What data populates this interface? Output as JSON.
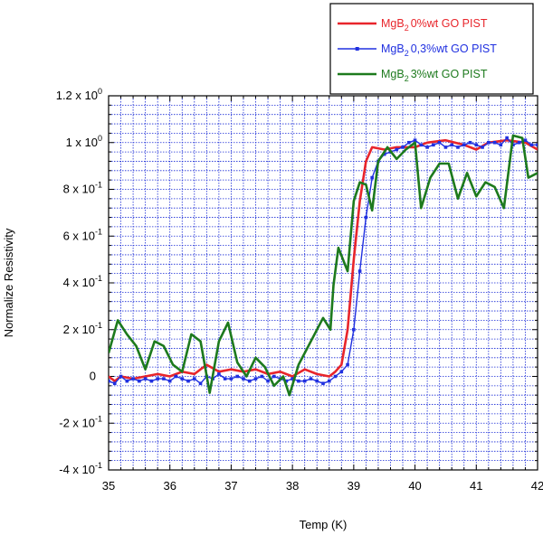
{
  "chart_data": {
    "type": "line",
    "xlabel": "Temp (K)",
    "ylabel": "Normalize Resistivity",
    "xlim": [
      35,
      42
    ],
    "ylim": [
      -0.4,
      1.2
    ],
    "x_ticks": [
      {
        "value": 35,
        "label": "35"
      },
      {
        "value": 36,
        "label": "36"
      },
      {
        "value": 37,
        "label": "37"
      },
      {
        "value": 38,
        "label": "38"
      },
      {
        "value": 39,
        "label": "39"
      },
      {
        "value": 40,
        "label": "40"
      },
      {
        "value": 41,
        "label": "41"
      },
      {
        "value": 42,
        "label": "42"
      }
    ],
    "y_ticks": [
      {
        "value": 1.2,
        "mantissa": "1.2",
        "exp": "0"
      },
      {
        "value": 1.0,
        "mantissa": "1",
        "exp": "0"
      },
      {
        "value": 0.8,
        "mantissa": "8",
        "exp": "-1"
      },
      {
        "value": 0.6,
        "mantissa": "6",
        "exp": "-1"
      },
      {
        "value": 0.4,
        "mantissa": "4",
        "exp": "-1"
      },
      {
        "value": 0.2,
        "mantissa": "2",
        "exp": "-1"
      },
      {
        "value": 0.0,
        "mantissa": "0",
        "exp": ""
      },
      {
        "value": -0.2,
        "mantissa": "-2",
        "exp": "-1"
      },
      {
        "value": -0.4,
        "mantissa": "-4",
        "exp": "-1"
      }
    ],
    "grid": true,
    "legend_position": "top-right",
    "series": [
      {
        "legend_main": "MgB",
        "legend_sub": "2",
        "legend_rest": "0%wt GO PIST",
        "color": "#e8252b",
        "marker": "none",
        "points": [
          [
            35.0,
            0.0
          ],
          [
            35.1,
            -0.02
          ],
          [
            35.2,
            0.0
          ],
          [
            35.4,
            -0.01
          ],
          [
            35.6,
            0.0
          ],
          [
            35.8,
            0.01
          ],
          [
            36.0,
            0.0
          ],
          [
            36.2,
            0.02
          ],
          [
            36.4,
            0.01
          ],
          [
            36.6,
            0.05
          ],
          [
            36.8,
            0.02
          ],
          [
            37.0,
            0.03
          ],
          [
            37.2,
            0.02
          ],
          [
            37.4,
            0.03
          ],
          [
            37.6,
            0.01
          ],
          [
            37.8,
            0.02
          ],
          [
            38.0,
            0.0
          ],
          [
            38.2,
            0.03
          ],
          [
            38.4,
            0.01
          ],
          [
            38.6,
            0.0
          ],
          [
            38.7,
            0.02
          ],
          [
            38.8,
            0.05
          ],
          [
            38.9,
            0.2
          ],
          [
            39.0,
            0.5
          ],
          [
            39.1,
            0.75
          ],
          [
            39.2,
            0.92
          ],
          [
            39.3,
            0.98
          ],
          [
            39.5,
            0.97
          ],
          [
            39.7,
            0.98
          ],
          [
            40.0,
            0.98
          ],
          [
            40.2,
            1.0
          ],
          [
            40.5,
            1.01
          ],
          [
            40.8,
            0.99
          ],
          [
            41.0,
            0.97
          ],
          [
            41.2,
            1.0
          ],
          [
            41.5,
            1.01
          ],
          [
            41.8,
            1.0
          ],
          [
            42.0,
            0.97
          ]
        ]
      },
      {
        "legend_main": "MgB",
        "legend_sub": "2",
        "legend_rest": "0,3%wt GO PIST",
        "color": "#2030e0",
        "marker": "square",
        "points": [
          [
            35.0,
            -0.02
          ],
          [
            35.1,
            -0.03
          ],
          [
            35.2,
            0.0
          ],
          [
            35.3,
            -0.02
          ],
          [
            35.4,
            -0.01
          ],
          [
            35.5,
            -0.02
          ],
          [
            35.6,
            -0.01
          ],
          [
            35.7,
            -0.02
          ],
          [
            35.8,
            -0.01
          ],
          [
            35.9,
            -0.01
          ],
          [
            36.0,
            -0.02
          ],
          [
            36.1,
            0.0
          ],
          [
            36.2,
            -0.01
          ],
          [
            36.3,
            -0.02
          ],
          [
            36.4,
            -0.01
          ],
          [
            36.5,
            -0.03
          ],
          [
            36.6,
            0.0
          ],
          [
            36.7,
            -0.01
          ],
          [
            36.8,
            0.01
          ],
          [
            36.9,
            -0.01
          ],
          [
            37.0,
            -0.01
          ],
          [
            37.1,
            0.0
          ],
          [
            37.2,
            -0.01
          ],
          [
            37.3,
            -0.02
          ],
          [
            37.4,
            -0.01
          ],
          [
            37.5,
            0.0
          ],
          [
            37.6,
            -0.02
          ],
          [
            37.7,
            0.0
          ],
          [
            37.8,
            -0.01
          ],
          [
            37.9,
            -0.02
          ],
          [
            38.0,
            -0.01
          ],
          [
            38.1,
            -0.02
          ],
          [
            38.2,
            -0.02
          ],
          [
            38.3,
            -0.01
          ],
          [
            38.4,
            -0.02
          ],
          [
            38.5,
            -0.03
          ],
          [
            38.6,
            -0.02
          ],
          [
            38.7,
            0.0
          ],
          [
            38.8,
            0.02
          ],
          [
            38.9,
            0.05
          ],
          [
            39.0,
            0.2
          ],
          [
            39.1,
            0.45
          ],
          [
            39.2,
            0.68
          ],
          [
            39.3,
            0.85
          ],
          [
            39.4,
            0.92
          ],
          [
            39.5,
            0.95
          ],
          [
            39.6,
            0.96
          ],
          [
            39.7,
            0.97
          ],
          [
            39.8,
            0.98
          ],
          [
            39.9,
            1.0
          ],
          [
            40.0,
            1.01
          ],
          [
            40.1,
            0.99
          ],
          [
            40.2,
            0.98
          ],
          [
            40.3,
            0.99
          ],
          [
            40.4,
            1.0
          ],
          [
            40.5,
            0.98
          ],
          [
            40.6,
            0.99
          ],
          [
            40.7,
            0.98
          ],
          [
            40.8,
            0.99
          ],
          [
            40.9,
            1.0
          ],
          [
            41.0,
            0.99
          ],
          [
            41.1,
            0.98
          ],
          [
            41.2,
            1.0
          ],
          [
            41.3,
            1.0
          ],
          [
            41.4,
            0.99
          ],
          [
            41.5,
            1.02
          ],
          [
            41.6,
            0.99
          ],
          [
            41.7,
            1.0
          ],
          [
            41.8,
            1.01
          ],
          [
            41.9,
            0.99
          ],
          [
            42.0,
            0.99
          ]
        ]
      },
      {
        "legend_main": "MgB",
        "legend_sub": "2",
        "legend_rest": "3%wt GO PIST",
        "color": "#1d7a1d",
        "marker": "none",
        "points": [
          [
            35.0,
            0.1
          ],
          [
            35.15,
            0.24
          ],
          [
            35.3,
            0.18
          ],
          [
            35.45,
            0.13
          ],
          [
            35.6,
            0.03
          ],
          [
            35.75,
            0.15
          ],
          [
            35.9,
            0.13
          ],
          [
            36.05,
            0.05
          ],
          [
            36.2,
            0.02
          ],
          [
            36.35,
            0.18
          ],
          [
            36.5,
            0.15
          ],
          [
            36.65,
            -0.07
          ],
          [
            36.8,
            0.15
          ],
          [
            36.95,
            0.23
          ],
          [
            37.1,
            0.06
          ],
          [
            37.25,
            0.0
          ],
          [
            37.4,
            0.08
          ],
          [
            37.55,
            0.04
          ],
          [
            37.7,
            -0.04
          ],
          [
            37.85,
            0.0
          ],
          [
            37.95,
            -0.08
          ],
          [
            38.1,
            0.05
          ],
          [
            38.3,
            0.15
          ],
          [
            38.5,
            0.25
          ],
          [
            38.62,
            0.2
          ],
          [
            38.67,
            0.39
          ],
          [
            38.75,
            0.55
          ],
          [
            38.9,
            0.45
          ],
          [
            39.0,
            0.75
          ],
          [
            39.1,
            0.83
          ],
          [
            39.2,
            0.82
          ],
          [
            39.3,
            0.71
          ],
          [
            39.4,
            0.92
          ],
          [
            39.55,
            0.98
          ],
          [
            39.7,
            0.93
          ],
          [
            39.85,
            0.97
          ],
          [
            40.0,
            1.0
          ],
          [
            40.1,
            0.72
          ],
          [
            40.25,
            0.85
          ],
          [
            40.4,
            0.91
          ],
          [
            40.55,
            0.91
          ],
          [
            40.7,
            0.76
          ],
          [
            40.85,
            0.87
          ],
          [
            41.0,
            0.77
          ],
          [
            41.15,
            0.83
          ],
          [
            41.3,
            0.81
          ],
          [
            41.45,
            0.72
          ],
          [
            41.6,
            1.03
          ],
          [
            41.75,
            1.02
          ],
          [
            41.85,
            0.85
          ],
          [
            42.0,
            0.87
          ]
        ]
      }
    ]
  }
}
